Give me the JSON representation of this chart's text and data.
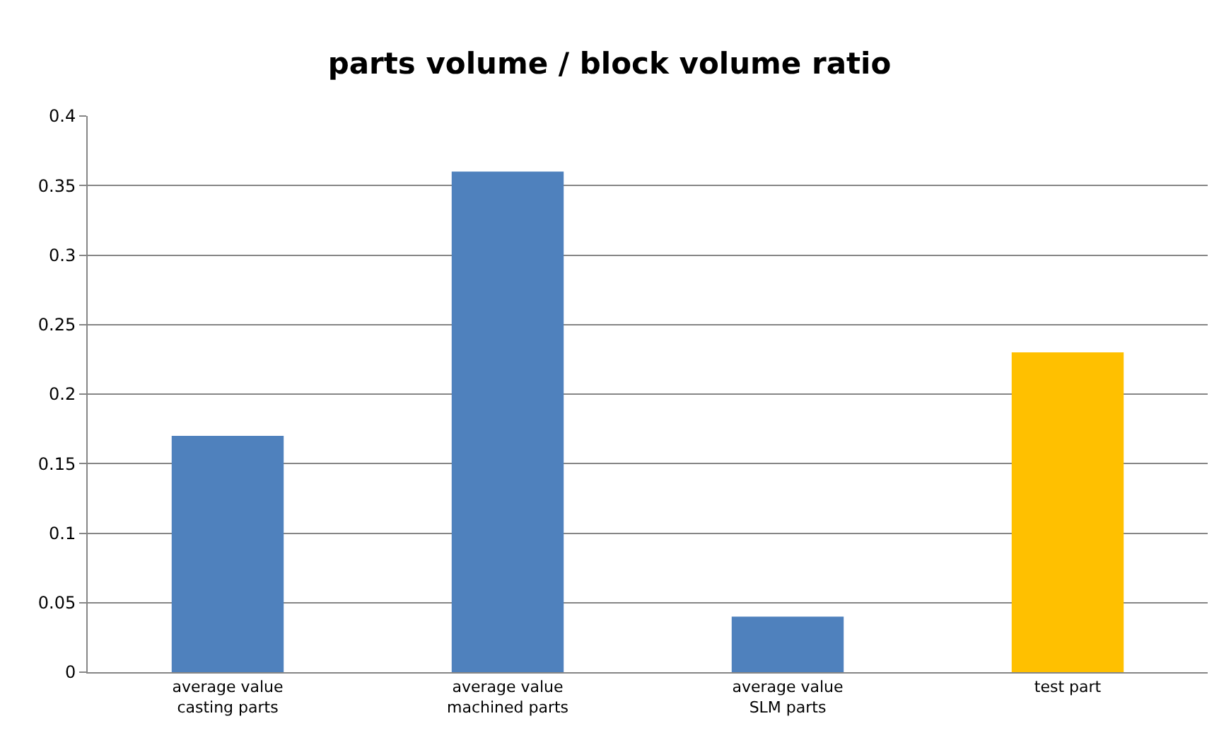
{
  "chart_data": {
    "type": "bar",
    "title": "parts volume / block volume ratio",
    "categories": [
      "average value\ncasting parts",
      "average value\nmachined parts",
      "average value\nSLM parts",
      "test part"
    ],
    "values": [
      0.17,
      0.36,
      0.04,
      0.23
    ],
    "colors": [
      "#4f81bd",
      "#4f81bd",
      "#4f81bd",
      "#ffc000"
    ],
    "ylim": [
      0,
      0.4
    ],
    "yticks": [
      0,
      0.05,
      0.1,
      0.15,
      0.2,
      0.25,
      0.3,
      0.35,
      0.4
    ],
    "grid": "y"
  }
}
